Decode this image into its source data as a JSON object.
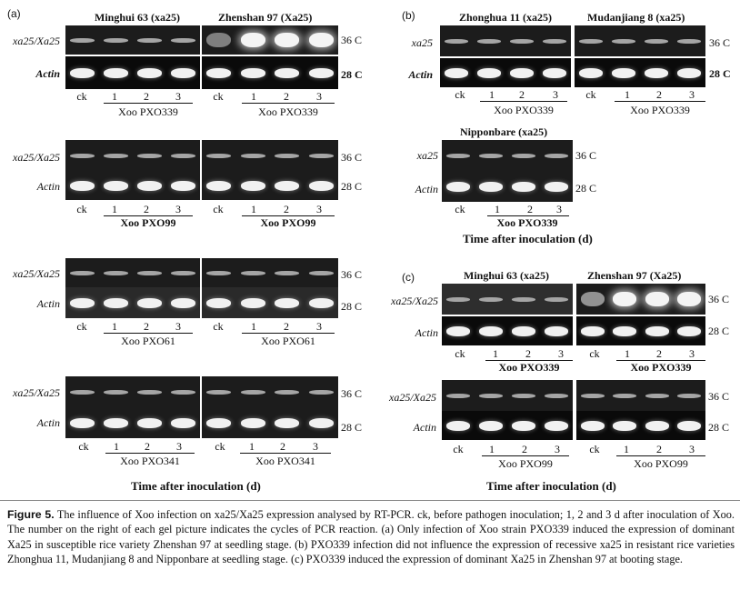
{
  "panels": [
    {
      "id": "a",
      "label": "(a)"
    },
    {
      "id": "b",
      "label": "(b)"
    },
    {
      "id": "c",
      "label": "(c)"
    }
  ],
  "cultivars": {
    "a_left": "Minghui 63 (xa25)",
    "a_right": "Zhenshan 97 (Xa25)",
    "b_left": "Zhonghua 11 (xa25)",
    "b_right": "Mudanjiang 8 (xa25)",
    "b_mid": "Nipponbare (xa25)",
    "c_left": "Minghui 63 (xa25)",
    "c_right": "Zhenshan 97 (Xa25)"
  },
  "row_labels": {
    "xa25_Xa25": "xa25/Xa25",
    "xa25": "xa25",
    "actin": "Actin"
  },
  "cycles": {
    "c36": "36 C",
    "c28": "28 C"
  },
  "lanes": [
    "ck",
    "1",
    "2",
    "3"
  ],
  "strains": {
    "pxo339": "Xoo PXO339",
    "pxo99": "Xoo PXO99",
    "pxo61": "Xoo PXO61",
    "pxo341": "Xoo PXO341"
  },
  "time_label": "Time after inoculation (d)",
  "caption": {
    "fig": "Figure 5.",
    "text": "The influence of Xoo infection on xa25/Xa25 expression analysed by RT-PCR. ck, before pathogen inoculation; 1, 2 and 3 d after inoculation of Xoo. The number on the right of each gel picture indicates the cycles of PCR reaction. (a) Only infection of Xoo strain PXO339 induced the expression of dominant Xa25 in susceptible rice variety Zhenshan 97 at seedling stage. (b) PXO339 infection did not influence the expression of recessive xa25 in resistant rice varieties Zhonghua 11, Mudanjiang 8 and Nipponbare at seedling stage. (c) PXO339 induced the expression of dominant Xa25 in Zhenshan 97 at booting stage."
  },
  "colors": {
    "gel": "#1c1c1c",
    "band_weak": "#9a9a9a",
    "band_strong": "#f4f4f4"
  }
}
